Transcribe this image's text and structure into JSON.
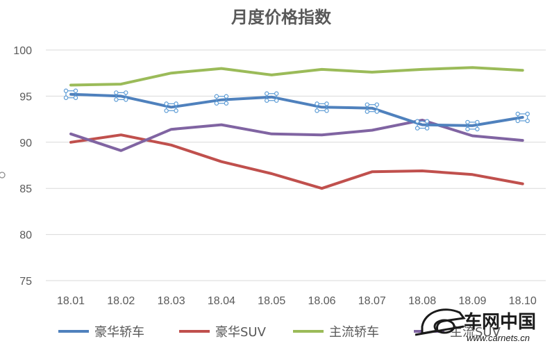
{
  "chart_data": {
    "type": "line",
    "title": "月度价格指数",
    "xlabel": "",
    "ylabel": "",
    "categories": [
      "18.01",
      "18.02",
      "18.03",
      "18.04",
      "18.05",
      "18.06",
      "18.07",
      "18.08",
      "18.09",
      "18.10"
    ],
    "ylim": [
      75,
      100
    ],
    "yticks": [
      75,
      80,
      85,
      90,
      95,
      100
    ],
    "grid": true,
    "legend": "bottom",
    "series": [
      {
        "name": "豪华轿车",
        "color": "#4f81bd",
        "selected": true,
        "values": [
          95.2,
          95.0,
          93.8,
          94.6,
          94.9,
          93.8,
          93.7,
          91.9,
          91.8,
          92.7
        ]
      },
      {
        "name": "豪华SUV",
        "color": "#c0504d",
        "values": [
          90.0,
          90.8,
          89.7,
          87.9,
          86.6,
          85.0,
          86.8,
          86.9,
          86.5,
          85.5
        ]
      },
      {
        "name": "主流轿车",
        "color": "#9bbb59",
        "values": [
          96.2,
          96.3,
          97.5,
          98.0,
          97.3,
          97.9,
          97.6,
          97.9,
          98.1,
          97.8
        ]
      },
      {
        "name": "主流SUV",
        "color": "#8064a2",
        "values": [
          90.9,
          89.1,
          91.4,
          91.9,
          90.9,
          90.8,
          91.3,
          92.4,
          90.7,
          90.2
        ]
      }
    ]
  },
  "watermark": {
    "name": "车网中国",
    "url": "www.carnets.cn",
    "logo_icon": "car-logo-icon"
  }
}
